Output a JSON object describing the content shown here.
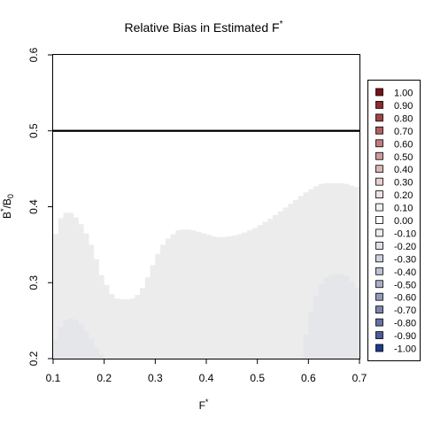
{
  "chart_data": {
    "type": "heatmap",
    "title": "Relative Bias in Estimated F",
    "title_sup": "*",
    "xlabel": "F",
    "xlabel_sup": "*",
    "ylabel_main": "B",
    "ylabel_sup": "*",
    "ylabel_rest": "/B",
    "ylabel_sub": "0",
    "xlim": [
      0.1,
      0.7
    ],
    "ylim": [
      0.2,
      0.6
    ],
    "x_ticks": [
      "0.1",
      "0.2",
      "0.3",
      "0.4",
      "0.5",
      "0.6",
      "0.7"
    ],
    "y_ticks": [
      "0.2",
      "0.3",
      "0.4",
      "0.5",
      "0.6"
    ],
    "reference_line": {
      "y": 0.5,
      "color": "#000000"
    },
    "legend": {
      "placement": "right",
      "entries": [
        {
          "label": "1.00",
          "color": "#7a1018"
        },
        {
          "label": "0.90",
          "color": "#8e2a30"
        },
        {
          "label": "0.80",
          "color": "#a04448"
        },
        {
          "label": "0.70",
          "color": "#b26062"
        },
        {
          "label": "0.60",
          "color": "#c27c7e"
        },
        {
          "label": "0.50",
          "color": "#d09a9b"
        },
        {
          "label": "0.40",
          "color": "#dcb6b7"
        },
        {
          "label": "0.30",
          "color": "#e7cfcf"
        },
        {
          "label": "0.20",
          "color": "#efe3e3"
        },
        {
          "label": "0.10",
          "color": "#f6f1f1"
        },
        {
          "label": "0.00",
          "color": "#ffffff"
        },
        {
          "label": "-0.10",
          "color": "#ededf0"
        },
        {
          "label": "-0.20",
          "color": "#e0e1e8"
        },
        {
          "label": "-0.30",
          "color": "#cfd2de"
        },
        {
          "label": "-0.40",
          "color": "#bcc1d4"
        },
        {
          "label": "-0.50",
          "color": "#a8aec9"
        },
        {
          "label": "-0.60",
          "color": "#929abd"
        },
        {
          "label": "-0.70",
          "color": "#7c86b1"
        },
        {
          "label": "-0.80",
          "color": "#6572a6"
        },
        {
          "label": "-0.90",
          "color": "#4d5d9a"
        },
        {
          "label": "-1.00",
          "color": "#1c3a8a"
        }
      ]
    },
    "regions": [
      {
        "name": "bias -0.10",
        "color": "#ececec",
        "x": [
          0.1,
          0.11,
          0.12,
          0.13,
          0.14,
          0.15,
          0.16,
          0.17,
          0.18,
          0.19,
          0.2,
          0.21,
          0.22,
          0.23,
          0.24,
          0.25,
          0.26,
          0.27,
          0.28,
          0.29,
          0.3,
          0.31,
          0.32,
          0.33,
          0.34,
          0.35,
          0.36,
          0.37,
          0.38,
          0.39,
          0.4,
          0.41,
          0.42,
          0.43,
          0.44,
          0.45,
          0.46,
          0.47,
          0.48,
          0.49,
          0.5,
          0.51,
          0.52,
          0.53,
          0.54,
          0.55,
          0.56,
          0.57,
          0.58,
          0.59,
          0.6,
          0.61,
          0.62,
          0.63,
          0.64,
          0.65,
          0.66,
          0.67,
          0.68,
          0.69,
          0.7
        ],
        "y": [
          0.364,
          0.385,
          0.392,
          0.392,
          0.386,
          0.377,
          0.365,
          0.35,
          0.331,
          0.31,
          0.297,
          0.285,
          0.279,
          0.278,
          0.278,
          0.279,
          0.284,
          0.293,
          0.307,
          0.323,
          0.338,
          0.35,
          0.358,
          0.364,
          0.369,
          0.37,
          0.37,
          0.369,
          0.367,
          0.365,
          0.363,
          0.361,
          0.36,
          0.36,
          0.361,
          0.362,
          0.364,
          0.366,
          0.369,
          0.372,
          0.376,
          0.38,
          0.384,
          0.389,
          0.394,
          0.399,
          0.404,
          0.409,
          0.414,
          0.419,
          0.423,
          0.427,
          0.43,
          0.431,
          0.431,
          0.431,
          0.431,
          0.43,
          0.428,
          0.426,
          0.42
        ]
      },
      {
        "name": "bias -0.20 left",
        "color": "#e5e6ea",
        "x": [
          0.1,
          0.11,
          0.12,
          0.13,
          0.14,
          0.15,
          0.16,
          0.17,
          0.18,
          0.19,
          0.2
        ],
        "y": [
          0.225,
          0.242,
          0.251,
          0.253,
          0.251,
          0.245,
          0.236,
          0.226,
          0.215,
          0.205,
          0.2
        ]
      },
      {
        "name": "bias -0.20 right",
        "color": "#e5e6ea",
        "x": [
          0.58,
          0.59,
          0.6,
          0.61,
          0.62,
          0.63,
          0.64,
          0.65,
          0.66,
          0.67,
          0.68,
          0.69,
          0.7
        ],
        "y": [
          0.2,
          0.232,
          0.262,
          0.283,
          0.298,
          0.307,
          0.311,
          0.312,
          0.311,
          0.308,
          0.302,
          0.293,
          0.284
        ]
      }
    ]
  }
}
